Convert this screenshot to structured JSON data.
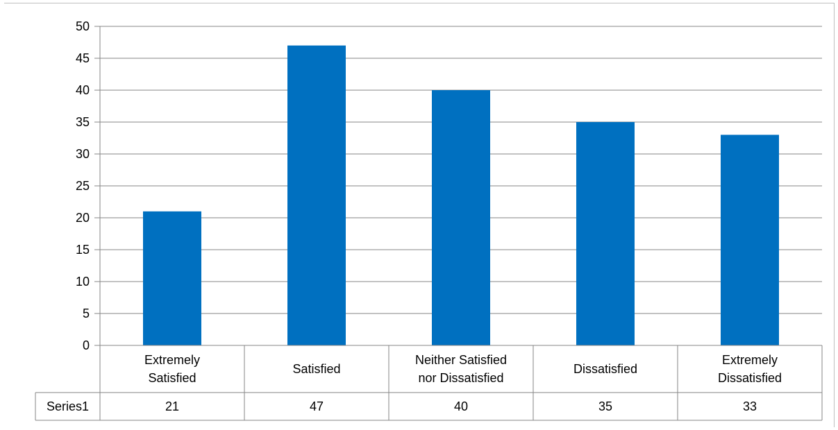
{
  "chart_data": {
    "type": "bar",
    "categories": [
      "Extremely Satisfied",
      "Satisfied",
      "Neither Satisfied nor Dissatisfied",
      "Dissatisfied",
      "Extremely Dissatisfied"
    ],
    "category_label_lines": [
      [
        "Extremely",
        "Satisfied"
      ],
      [
        "Satisfied"
      ],
      [
        "Neither Satisfied",
        "nor Dissatisfied"
      ],
      [
        "Dissatisfied"
      ],
      [
        "Extremely",
        "Dissatisfied"
      ]
    ],
    "series": [
      {
        "name": "Series1",
        "values": [
          21,
          47,
          40,
          35,
          33
        ],
        "color": "#0070c0"
      }
    ],
    "ylim": [
      0,
      50
    ],
    "yticks": [
      0,
      5,
      10,
      15,
      20,
      25,
      30,
      35,
      40,
      45,
      50
    ],
    "grid": true,
    "data_table": true,
    "legend": "none",
    "gridline_color": "#868686",
    "table_border_color": "#868686"
  }
}
